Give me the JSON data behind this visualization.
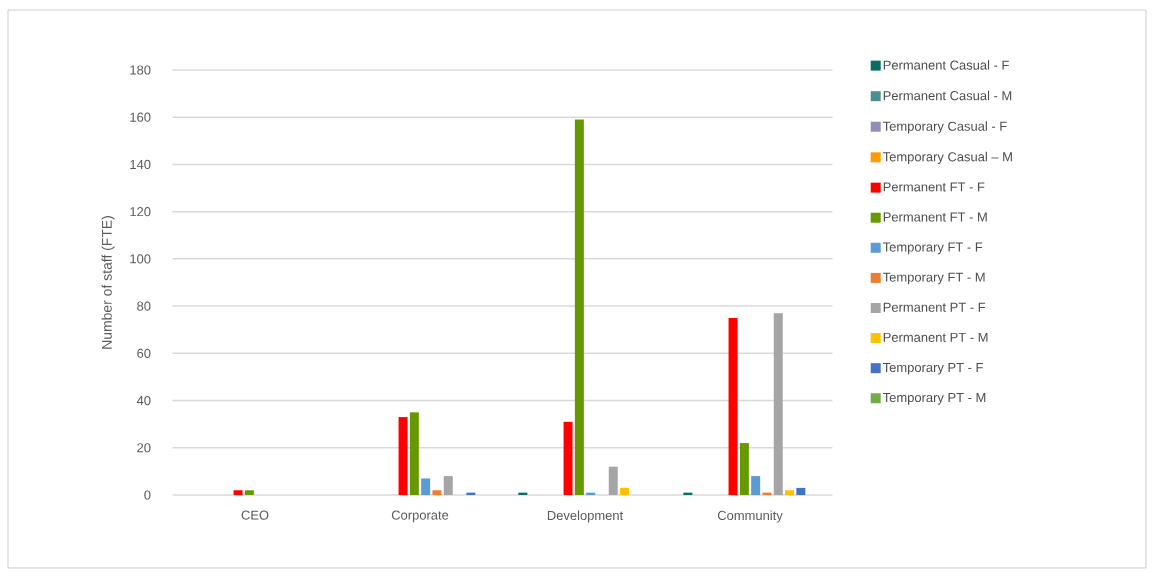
{
  "chart_data": {
    "type": "bar",
    "ylabel": "Number of staff (FTE)",
    "categories": [
      "CEO",
      "Corporate",
      "Development",
      "Community"
    ],
    "series": [
      {
        "name": "Permanent Casual - F",
        "color": "#0b6b66",
        "values": [
          0,
          0,
          1,
          1
        ]
      },
      {
        "name": "Permanent Casual - M",
        "color": "#4a8f8f",
        "values": [
          0,
          0,
          0,
          0
        ]
      },
      {
        "name": "Temporary Casual - F",
        "color": "#8f8fb8",
        "values": [
          0,
          0,
          0,
          0
        ]
      },
      {
        "name": "Temporary Casual – M",
        "color": "#ff9900",
        "values": [
          0,
          0,
          0,
          0
        ]
      },
      {
        "name": "Permanent FT - F",
        "color": "#ff0000",
        "values": [
          2,
          33,
          31,
          75
        ]
      },
      {
        "name": "Permanent FT - M",
        "color": "#669900",
        "values": [
          2,
          35,
          159,
          22
        ]
      },
      {
        "name": "Temporary FT - F",
        "color": "#5b9bd5",
        "values": [
          0,
          7,
          1,
          8
        ]
      },
      {
        "name": "Temporary FT - M",
        "color": "#ed7d31",
        "values": [
          0,
          2,
          0,
          1
        ]
      },
      {
        "name": "Permanent PT - F",
        "color": "#a5a5a5",
        "values": [
          0,
          8,
          12,
          77
        ]
      },
      {
        "name": "Permanent PT - M",
        "color": "#ffc000",
        "values": [
          0,
          0,
          3,
          2
        ]
      },
      {
        "name": "Temporary PT - F",
        "color": "#4472c4",
        "values": [
          0,
          1,
          0,
          3
        ]
      },
      {
        "name": "Temporary PT - M",
        "color": "#70ad47",
        "values": [
          0,
          0,
          0,
          0
        ]
      }
    ],
    "ylim": [
      0,
      180
    ],
    "yticks": [
      0,
      20,
      40,
      60,
      80,
      100,
      120,
      140,
      160,
      180
    ],
    "grid": "y",
    "legend": "right"
  }
}
